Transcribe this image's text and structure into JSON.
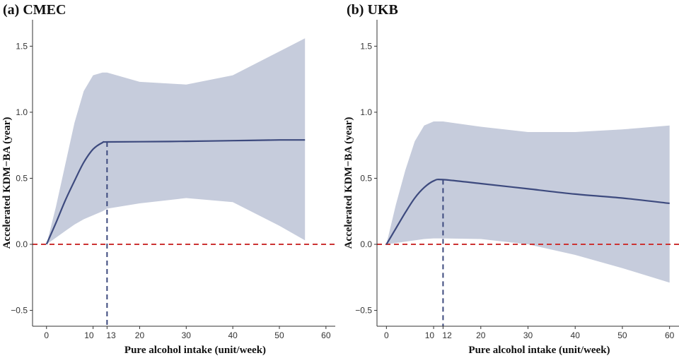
{
  "colors": {
    "band": "#c6ccdc",
    "line": "#3d4a7e",
    "reference": "#cc3333",
    "axis": "#333333"
  },
  "chart_data": [
    {
      "id": "a",
      "type": "line",
      "title": "(a) CMEC",
      "xlabel": "Pure alcohol intake (unit/week)",
      "ylabel": "Accelerated KDM−BA (year)",
      "xlim": [
        -3,
        62
      ],
      "ylim": [
        -0.62,
        1.7
      ],
      "x_ticks": [
        0,
        10,
        13,
        20,
        30,
        40,
        50,
        60
      ],
      "x_tick_labels": [
        "0",
        "10",
        "13",
        "20",
        "30",
        "40",
        "50",
        "60"
      ],
      "y_ticks": [
        -0.5,
        0.0,
        0.5,
        1.0,
        1.5
      ],
      "y_tick_labels": [
        "−0.5",
        "0.0",
        "0.5",
        "1.0",
        "1.5"
      ],
      "grid": false,
      "reference_line_y": 0,
      "marker_x": 13,
      "series": [
        {
          "x": [
            0,
            2,
            4,
            6,
            8,
            10,
            12,
            13,
            20,
            30,
            40,
            50,
            55.5
          ],
          "y": [
            0.0,
            0.16,
            0.33,
            0.48,
            0.62,
            0.72,
            0.77,
            0.775,
            0.777,
            0.78,
            0.785,
            0.79,
            0.79
          ],
          "lower": [
            0.0,
            0.05,
            0.1,
            0.15,
            0.19,
            0.22,
            0.25,
            0.27,
            0.31,
            0.35,
            0.32,
            0.14,
            0.03
          ],
          "upper": [
            0.0,
            0.28,
            0.6,
            0.92,
            1.16,
            1.28,
            1.3,
            1.3,
            1.23,
            1.21,
            1.28,
            1.46,
            1.56
          ]
        }
      ]
    },
    {
      "id": "b",
      "type": "line",
      "title": "(b) UKB",
      "xlabel": "Pure alcohol intake (unit/week)",
      "ylabel": "Accelerated KDM−BA (year)",
      "xlim": [
        -2,
        62
      ],
      "ylim": [
        -0.62,
        1.7
      ],
      "x_ticks": [
        0,
        10,
        12,
        20,
        30,
        40,
        50,
        60
      ],
      "x_tick_labels": [
        "0",
        "10",
        "12",
        "20",
        "30",
        "40",
        "50",
        "60"
      ],
      "y_ticks": [
        -0.5,
        0.0,
        0.5,
        1.0,
        1.5
      ],
      "y_tick_labels": [
        "−0.5",
        "0.0",
        "0.5",
        "1.0",
        "1.5"
      ],
      "grid": false,
      "reference_line_y": 0,
      "marker_x": 12,
      "series": [
        {
          "x": [
            0,
            2,
            4,
            6,
            8,
            10,
            12,
            20,
            30,
            40,
            50,
            60
          ],
          "y": [
            0.0,
            0.12,
            0.24,
            0.35,
            0.43,
            0.48,
            0.49,
            0.46,
            0.42,
            0.38,
            0.35,
            0.31
          ],
          "lower": [
            0.0,
            0.01,
            0.02,
            0.03,
            0.04,
            0.045,
            0.045,
            0.04,
            0.0,
            -0.08,
            -0.18,
            -0.29
          ],
          "upper": [
            0.0,
            0.3,
            0.56,
            0.78,
            0.9,
            0.93,
            0.93,
            0.89,
            0.85,
            0.85,
            0.87,
            0.9
          ]
        }
      ]
    }
  ]
}
